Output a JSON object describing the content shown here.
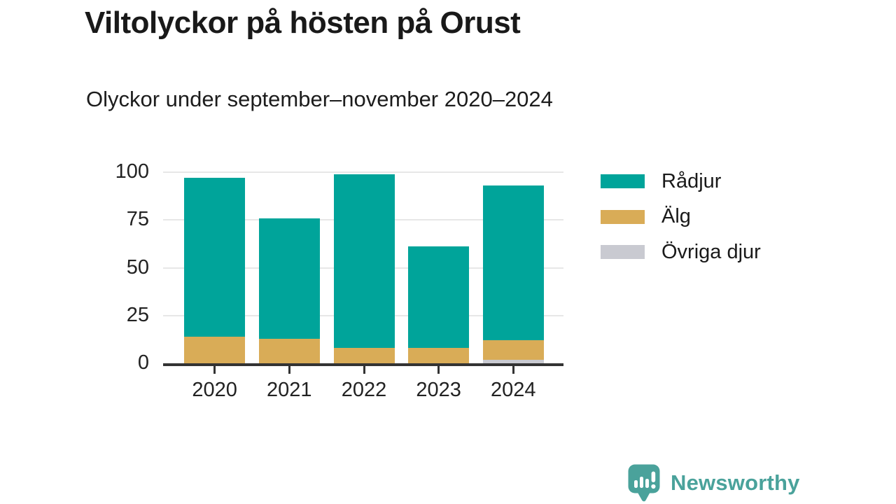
{
  "title": "Viltolyckor på hösten på Orust",
  "subtitle": "Olyckor under september–november 2020–2024",
  "chart_data": {
    "type": "bar",
    "stacked": true,
    "title": "Viltolyckor på hösten på Orust",
    "subtitle": "Olyckor under september–november 2020–2024",
    "categories": [
      "2020",
      "2021",
      "2022",
      "2023",
      "2024"
    ],
    "series": [
      {
        "name": "Rådjur",
        "color": "#00a49a",
        "values": [
          83,
          63,
          91,
          53,
          81
        ]
      },
      {
        "name": "Älg",
        "color": "#d9ac57",
        "values": [
          14,
          13,
          8,
          8,
          10
        ]
      },
      {
        "name": "Övriga djur",
        "color": "#c9cad1",
        "values": [
          0,
          0,
          0,
          0,
          2
        ]
      }
    ],
    "totals": [
      97,
      76,
      99,
      61,
      93
    ],
    "xlabel": "",
    "ylabel": "",
    "ylim": [
      0,
      100
    ],
    "yticks": [
      0,
      25,
      50,
      75,
      100
    ],
    "grid": true,
    "legend_position": "right",
    "stack_order_bottom_to_top": [
      "Övriga djur",
      "Älg",
      "Rådjur"
    ]
  },
  "footer": {
    "brand": "Newsworthy",
    "brand_color": "#4aa29b",
    "logo_icon": "speech-bubble-bar-chart-icon"
  },
  "colors": {
    "axis": "#333333",
    "gridline": "#e7e7e7",
    "text": "#191919",
    "background": "#ffffff"
  }
}
